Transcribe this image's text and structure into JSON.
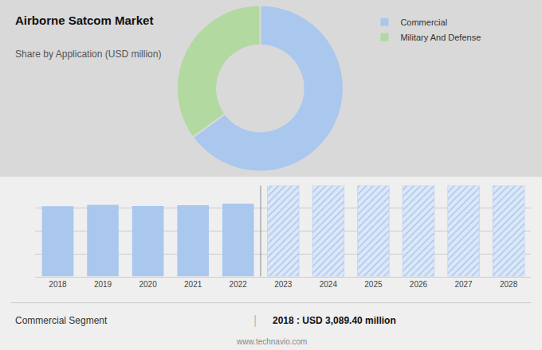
{
  "chart_data": [
    {
      "type": "pie",
      "title": "Airborne Satcom Market",
      "subtitle": "Share by Application (USD million)",
      "categories": [
        "Commercial",
        "Military And Defense"
      ],
      "values": [
        65,
        35
      ],
      "colors": [
        "#aac7ee",
        "#b2d9a0"
      ],
      "legend": "upper right"
    },
    {
      "type": "bar",
      "categories": [
        "2018",
        "2019",
        "2020",
        "2021",
        "2022",
        "2023",
        "2024",
        "2025",
        "2026",
        "2027",
        "2028"
      ],
      "series": [
        {
          "color": "#aac7ee",
          "values": [
            3089,
            3150,
            3100,
            3130,
            3200,
            null,
            null,
            null,
            null,
            null,
            null
          ]
        },
        {
          "color": "#dce8f7",
          "marker": "hatched",
          "values": [
            null,
            null,
            null,
            null,
            null,
            4000,
            4000,
            4000,
            4000,
            4000,
            4000
          ]
        }
      ],
      "ylim": [
        0,
        4000
      ],
      "yticks": [
        0,
        1000,
        2000,
        3000,
        4000
      ],
      "grid": true,
      "tick_labels": "x",
      "annotations": [
        "Commercial Segment",
        "|",
        "2018 : USD 3,089.40 million",
        "www.technavio.com"
      ]
    }
  ]
}
